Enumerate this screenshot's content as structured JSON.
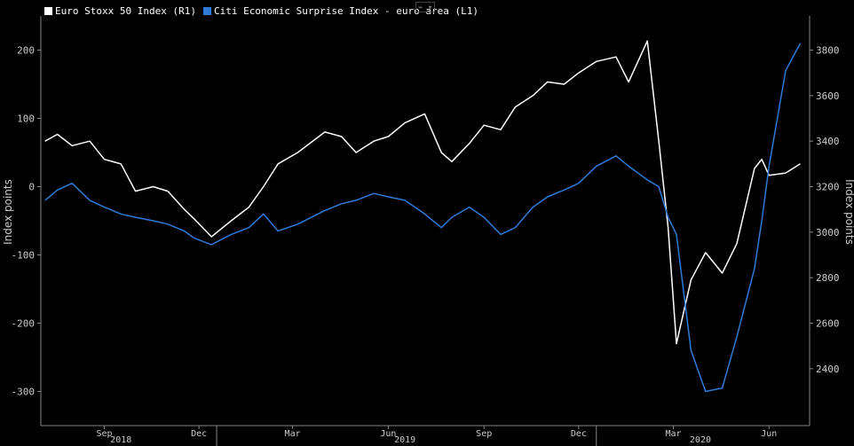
{
  "legend": {
    "items": [
      {
        "label": "Euro Stoxx 50 Index (R1)",
        "color": "#ffffff"
      },
      {
        "label": "Citi Economic Surprise Index - euro area (L1)",
        "color": "#2f7bd6"
      }
    ]
  },
  "toolbar": {
    "chart_icon": "line-chart-icon"
  },
  "chart_data": {
    "type": "line",
    "ylabel_left": "Index points",
    "ylabel_right": "Index points",
    "y_left": {
      "min": -350,
      "max": 250,
      "ticks": [
        200,
        100,
        0,
        -100,
        -200,
        -300
      ]
    },
    "y_right": {
      "min": 2150,
      "max": 3950,
      "ticks": [
        3800,
        3600,
        3400,
        3200,
        3000,
        2800,
        2600,
        2400
      ]
    },
    "x_month_labels": [
      "Sep",
      "Dec",
      "Mar",
      "Jun",
      "Sep",
      "Dec",
      "Mar",
      "Jun"
    ],
    "x_year_labels": [
      "2018",
      "2019",
      "2020"
    ],
    "series": [
      {
        "name": "Euro Stoxx 50 Index (R1)",
        "axis": "right",
        "color": "#ffffff",
        "x": [
          "2018-07-20",
          "2018-08-01",
          "2018-08-15",
          "2018-09-01",
          "2018-09-15",
          "2018-10-01",
          "2018-10-15",
          "2018-11-01",
          "2018-11-15",
          "2018-12-01",
          "2018-12-10",
          "2018-12-27",
          "2019-01-15",
          "2019-02-01",
          "2019-02-15",
          "2019-03-01",
          "2019-03-20",
          "2019-04-15",
          "2019-05-01",
          "2019-05-15",
          "2019-06-01",
          "2019-06-15",
          "2019-07-01",
          "2019-07-20",
          "2019-08-05",
          "2019-08-15",
          "2019-09-01",
          "2019-09-15",
          "2019-10-01",
          "2019-10-15",
          "2019-11-01",
          "2019-11-15",
          "2019-12-01",
          "2019-12-15",
          "2020-01-01",
          "2020-01-20",
          "2020-02-01",
          "2020-02-19",
          "2020-03-01",
          "2020-03-10",
          "2020-03-18",
          "2020-04-01",
          "2020-04-15",
          "2020-05-01",
          "2020-05-15",
          "2020-06-01",
          "2020-06-08",
          "2020-06-15",
          "2020-07-01",
          "2020-07-15"
        ],
        "y": [
          3400,
          3430,
          3380,
          3400,
          3320,
          3300,
          3180,
          3200,
          3180,
          3100,
          3060,
          2980,
          3050,
          3110,
          3200,
          3300,
          3350,
          3440,
          3420,
          3350,
          3400,
          3420,
          3480,
          3520,
          3350,
          3310,
          3390,
          3470,
          3450,
          3550,
          3600,
          3660,
          3650,
          3700,
          3750,
          3770,
          3660,
          3840,
          3400,
          3020,
          2510,
          2790,
          2910,
          2820,
          2950,
          3280,
          3320,
          3250,
          3260,
          3300
        ]
      },
      {
        "name": "Citi Economic Surprise Index - euro area (L1)",
        "axis": "left",
        "color": "#2f7bd6",
        "x": [
          "2018-07-20",
          "2018-08-01",
          "2018-08-15",
          "2018-09-01",
          "2018-09-15",
          "2018-10-01",
          "2018-10-15",
          "2018-11-01",
          "2018-11-15",
          "2018-12-01",
          "2018-12-10",
          "2018-12-27",
          "2019-01-15",
          "2019-02-01",
          "2019-02-15",
          "2019-03-01",
          "2019-03-20",
          "2019-04-15",
          "2019-05-01",
          "2019-05-15",
          "2019-06-01",
          "2019-06-15",
          "2019-07-01",
          "2019-07-20",
          "2019-08-05",
          "2019-08-15",
          "2019-09-01",
          "2019-09-15",
          "2019-10-01",
          "2019-10-15",
          "2019-11-01",
          "2019-11-15",
          "2019-12-01",
          "2019-12-15",
          "2020-01-01",
          "2020-01-20",
          "2020-02-01",
          "2020-02-19",
          "2020-03-01",
          "2020-03-10",
          "2020-03-18",
          "2020-04-01",
          "2020-04-15",
          "2020-05-01",
          "2020-05-15",
          "2020-06-01",
          "2020-06-08",
          "2020-06-15",
          "2020-07-01",
          "2020-07-15"
        ],
        "y": [
          -20,
          -5,
          5,
          -20,
          -30,
          -40,
          -45,
          -50,
          -55,
          -65,
          -75,
          -85,
          -70,
          -60,
          -40,
          -65,
          -55,
          -35,
          -25,
          -20,
          -10,
          -15,
          -20,
          -40,
          -60,
          -45,
          -30,
          -45,
          -70,
          -60,
          -30,
          -15,
          -5,
          5,
          30,
          45,
          30,
          10,
          0,
          -45,
          -70,
          -240,
          -300,
          -295,
          -220,
          -120,
          -50,
          30,
          170,
          210
        ]
      }
    ]
  }
}
